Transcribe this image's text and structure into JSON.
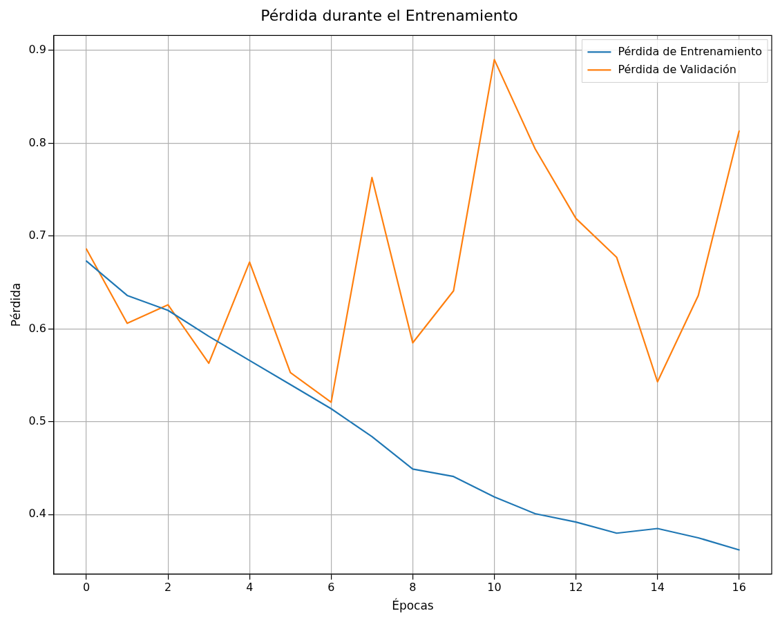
{
  "chart_data": {
    "type": "line",
    "title": "Pérdida durante el Entrenamiento",
    "xlabel": "Épocas",
    "ylabel": "Pérdida",
    "x": [
      0,
      1,
      2,
      3,
      4,
      5,
      6,
      7,
      8,
      9,
      10,
      11,
      12,
      13,
      14,
      15,
      16
    ],
    "series": [
      {
        "name": "Pérdida de Entrenamiento",
        "color": "#1f77b4",
        "values": [
          0.673,
          0.636,
          0.62,
          0.592,
          0.566,
          0.54,
          0.514,
          0.484,
          0.449,
          0.441,
          0.419,
          0.401,
          0.392,
          0.38,
          0.385,
          0.375,
          0.362
        ]
      },
      {
        "name": "Pérdida de Validación",
        "color": "#ff7f0e",
        "values": [
          0.686,
          0.606,
          0.626,
          0.563,
          0.672,
          0.553,
          0.521,
          0.763,
          0.585,
          0.641,
          0.89,
          0.794,
          0.719,
          0.677,
          0.543,
          0.636,
          0.813
        ]
      }
    ],
    "xlim": [
      -0.8,
      16.8
    ],
    "xticks": [
      0,
      2,
      4,
      6,
      8,
      10,
      12,
      14,
      16
    ],
    "ylim": [
      0.336,
      0.916
    ],
    "yticks": [
      {
        "value": 0.4,
        "label": "0.4"
      },
      {
        "value": 0.5,
        "label": "0.5"
      },
      {
        "value": 0.6,
        "label": "0.6"
      },
      {
        "value": 0.7,
        "label": "0.7"
      },
      {
        "value": 0.8,
        "label": "0.8"
      },
      {
        "value": 0.9,
        "label": "0.9"
      }
    ],
    "grid": true,
    "legend": "top right",
    "marker": "none",
    "line_style": "solid"
  }
}
